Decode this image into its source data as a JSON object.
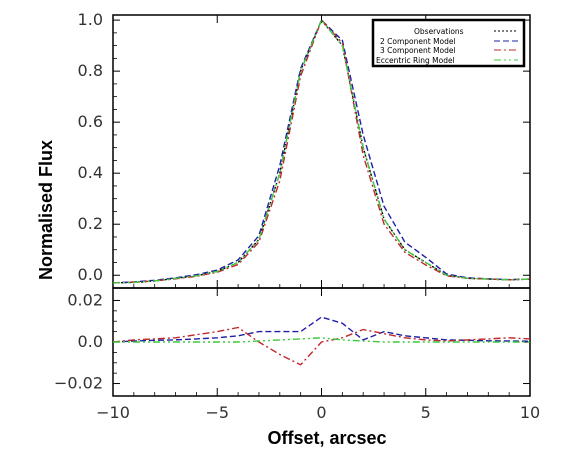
{
  "chart_data": [
    {
      "type": "line",
      "panel": "main",
      "title": "",
      "xlabel": "",
      "ylabel": "Normalised Flux",
      "xlim": [
        -10,
        10
      ],
      "ylim": [
        -0.05,
        1.02
      ],
      "y_ticks": [
        0.0,
        0.2,
        0.4,
        0.6,
        0.8,
        1.0
      ],
      "y_tick_labels": [
        "0.0",
        "0.2",
        "0.4",
        "0.6",
        "0.8",
        "1.0"
      ],
      "legend": {
        "placement": "top-right",
        "entries": [
          "Observations",
          "2 Component Model",
          "3 Component Model",
          "Eccentric Ring Model"
        ]
      },
      "x": [
        -10,
        -9,
        -8,
        -7,
        -6,
        -5,
        -4,
        -3,
        -2,
        -1,
        0,
        1,
        2,
        3,
        4,
        5,
        6,
        7,
        8,
        9,
        10
      ],
      "series": [
        {
          "name": "Observations",
          "color": "#000000",
          "dash": "2,2",
          "values": [
            -0.03,
            -0.028,
            -0.022,
            -0.012,
            -0.002,
            0.015,
            0.05,
            0.14,
            0.4,
            0.8,
            1.0,
            0.9,
            0.5,
            0.22,
            0.1,
            0.05,
            0.0,
            -0.012,
            -0.015,
            -0.018,
            -0.015
          ]
        },
        {
          "name": "2 Component Model",
          "color": "#1f1fa8",
          "dash": "6,3",
          "values": [
            -0.03,
            -0.026,
            -0.02,
            -0.01,
            0.002,
            0.02,
            0.06,
            0.155,
            0.43,
            0.81,
            1.0,
            0.92,
            0.55,
            0.27,
            0.13,
            0.07,
            0.005,
            -0.01,
            -0.014,
            -0.017,
            -0.015
          ]
        },
        {
          "name": "3 Component Model",
          "color": "#c0282d",
          "dash": "7,3,2,3",
          "values": [
            -0.03,
            -0.027,
            -0.022,
            -0.014,
            -0.004,
            0.012,
            0.042,
            0.13,
            0.37,
            0.78,
            1.0,
            0.91,
            0.47,
            0.2,
            0.09,
            0.04,
            -0.002,
            -0.012,
            -0.015,
            -0.018,
            -0.015
          ]
        },
        {
          "name": "Eccentric Ring Model",
          "color": "#3ccc3c",
          "dash": "7,3,2,3,2,3",
          "values": [
            -0.03,
            -0.028,
            -0.022,
            -0.012,
            -0.002,
            0.015,
            0.05,
            0.14,
            0.4,
            0.8,
            1.0,
            0.9,
            0.5,
            0.22,
            0.1,
            0.05,
            0.0,
            -0.012,
            -0.015,
            -0.018,
            -0.015
          ]
        }
      ]
    },
    {
      "type": "line",
      "panel": "residuals",
      "title": "",
      "xlabel": "Offset, arcsec",
      "ylabel": "",
      "xlim": [
        -10,
        10
      ],
      "ylim": [
        -0.026,
        0.026
      ],
      "y_ticks": [
        -0.02,
        0.0,
        0.02
      ],
      "y_tick_labels": [
        "−0.02",
        "0.0",
        "0.02"
      ],
      "x_ticks": [
        -10,
        -5,
        0,
        5,
        10
      ],
      "x_tick_labels": [
        "−10",
        "−5",
        "0",
        "5",
        "10"
      ],
      "x": [
        -10,
        -9,
        -8,
        -7,
        -6,
        -5,
        -4,
        -3,
        -2,
        -1,
        0,
        1,
        2,
        3,
        4,
        5,
        6,
        7,
        8,
        9,
        10
      ],
      "series": [
        {
          "name": "2 Component Model",
          "color": "#1f1fa8",
          "dash": "6,3",
          "values": [
            0.0,
            0.0005,
            0.0008,
            0.001,
            0.0015,
            0.002,
            0.003,
            0.005,
            0.005,
            0.005,
            0.012,
            0.009,
            0.001,
            0.005,
            0.003,
            0.002,
            0.001,
            0.0008,
            0.0006,
            0.0005,
            0.0004
          ]
        },
        {
          "name": "3 Component Model",
          "color": "#c0282d",
          "dash": "7,3,2,3",
          "values": [
            0.0,
            0.001,
            0.0015,
            0.002,
            0.0035,
            0.005,
            0.007,
            0.0,
            -0.006,
            -0.011,
            0.0,
            0.002,
            0.006,
            0.004,
            0.002,
            0.001,
            0.0005,
            0.001,
            0.0015,
            0.002,
            0.0015
          ]
        },
        {
          "name": "Eccentric Ring Model",
          "color": "#3ccc3c",
          "dash": "7,3,2,3,2,3",
          "values": [
            0.0,
            0.0,
            0.0,
            0.0,
            0.0,
            0.0,
            0.0,
            0.0005,
            0.001,
            0.0015,
            0.002,
            0.001,
            0.0005,
            0.0,
            0.0,
            0.0,
            0.0,
            0.0,
            0.0,
            0.0,
            0.0
          ]
        }
      ]
    }
  ]
}
